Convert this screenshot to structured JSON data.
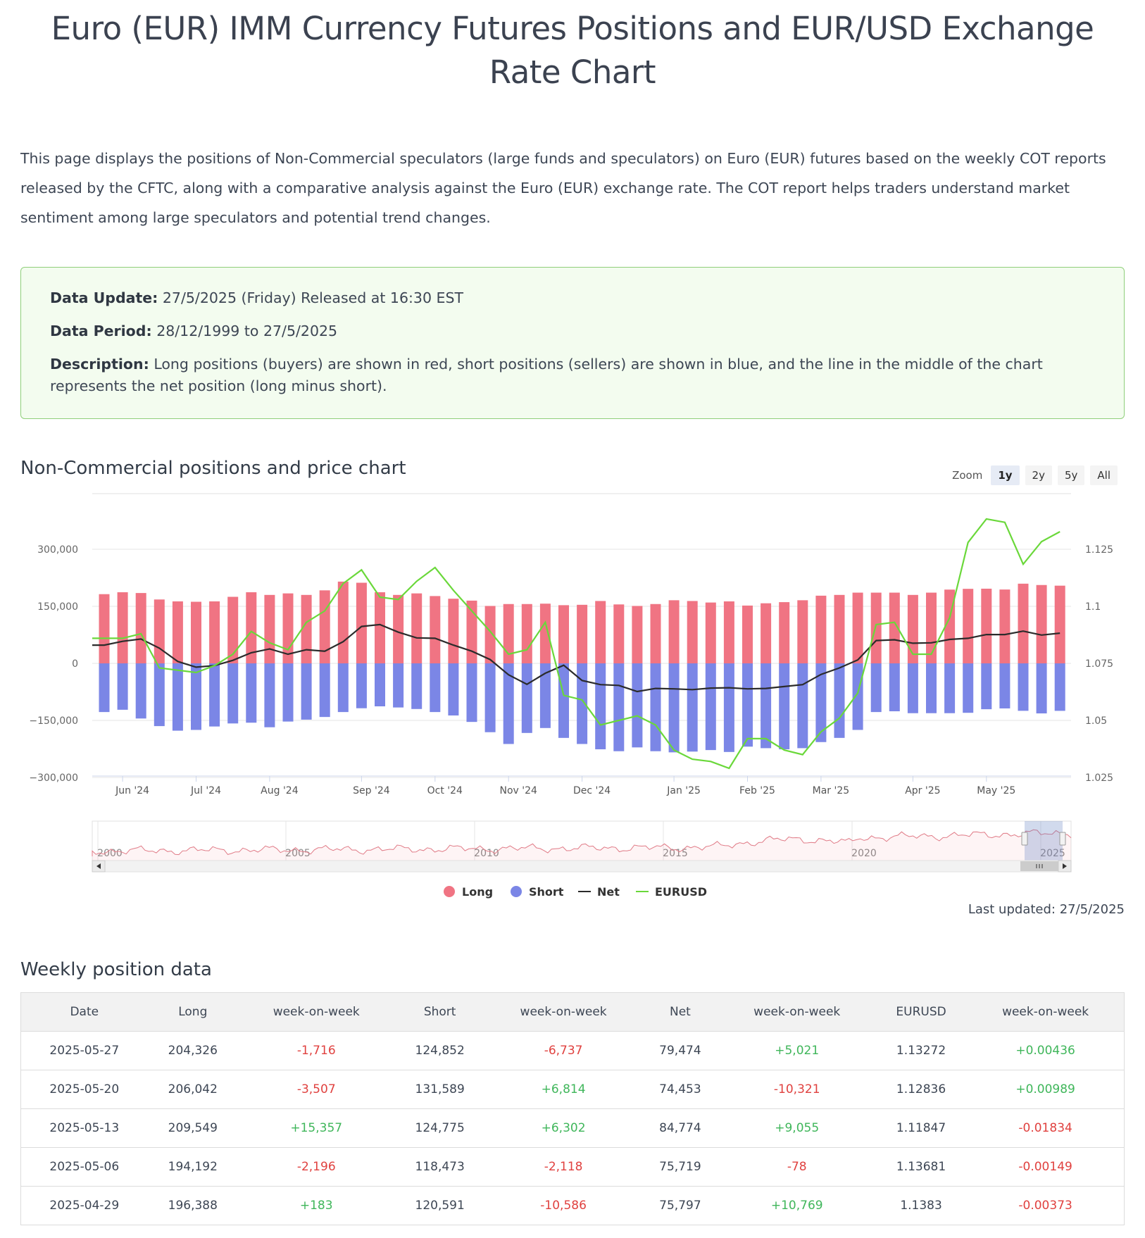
{
  "page": {
    "title": "Euro (EUR) IMM Currency Futures Positions and EUR/USD Exchange Rate Chart",
    "intro": "This page displays the positions of Non-Commercial speculators (large funds and speculators) on Euro (EUR) futures based on the weekly COT reports released by the CFTC, along with a comparative analysis against the Euro (EUR) exchange rate. The COT report helps traders understand market sentiment among large speculators and potential trend changes."
  },
  "info": {
    "update_label": "Data Update:",
    "update_value": "27/5/2025 (Friday) Released at 16:30 EST",
    "period_label": "Data Period:",
    "period_value": "28/12/1999 to 27/5/2025",
    "desc_label": "Description:",
    "desc_value": "Long positions (buyers) are shown in red, short positions (sellers) are shown in blue, and the line in the middle of the chart represents the net position (long minus short)."
  },
  "chart_section": {
    "title": "Non-Commercial positions and price chart",
    "zoom_label": "Zoom",
    "zoom_buttons": [
      "1y",
      "2y",
      "5y",
      "All"
    ],
    "zoom_active": "1y",
    "last_updated": "Last updated: 27/5/2025"
  },
  "colors": {
    "long": "#f07483",
    "short": "#7b86e6",
    "net": "#2b2b2b",
    "eurusd": "#6ad83a"
  },
  "chart_data": {
    "type": "bar",
    "x_labels": [
      "Jun '24",
      "Jul '24",
      "Aug '24",
      "Sep '24",
      "Oct '24",
      "Nov '24",
      "Dec '24",
      "Jan '25",
      "Feb '25",
      "Mar '25",
      "Apr '25",
      "May '25"
    ],
    "x_label_week_index": [
      1,
      5,
      9,
      14,
      18,
      22,
      26,
      31,
      35,
      39,
      44,
      48
    ],
    "left_axis_ticks": [
      "300,000",
      "150,000",
      "0",
      "−150,000",
      "−300,000"
    ],
    "right_axis_ticks": [
      "1.125",
      "1.1",
      "1.075",
      "1.05",
      "1.025"
    ],
    "left_ylim": [
      -300000,
      300000
    ],
    "right_ylim": [
      1.025,
      1.125
    ],
    "legend": [
      "Long",
      "Short",
      "Net",
      "EURUSD"
    ],
    "series": [
      {
        "name": "Long",
        "values": [
          182000,
          187000,
          185000,
          168000,
          163000,
          162000,
          163000,
          175000,
          187000,
          180000,
          184000,
          180000,
          192000,
          215000,
          212000,
          187000,
          180000,
          184000,
          177000,
          170000,
          165000,
          151000,
          156000,
          156000,
          157000,
          153000,
          154000,
          164000,
          155000,
          151000,
          156000,
          166000,
          164000,
          160000,
          163000,
          152000,
          158000,
          161000,
          166000,
          178000,
          180000,
          186000,
          186000,
          186000,
          180000,
          186000,
          194000,
          196000,
          196388,
          194192,
          209549,
          206042,
          204326
        ]
      },
      {
        "name": "Short",
        "values": [
          -128000,
          -122000,
          -145000,
          -165000,
          -177000,
          -175000,
          -166000,
          -158000,
          -156000,
          -168000,
          -153000,
          -148000,
          -141000,
          -128000,
          -118000,
          -113000,
          -116000,
          -120000,
          -128000,
          -137000,
          -154000,
          -181000,
          -212000,
          -183000,
          -170000,
          -196000,
          -212000,
          -226000,
          -231000,
          -221000,
          -231000,
          -234000,
          -232000,
          -228000,
          -233000,
          -219000,
          -223000,
          -226000,
          -223000,
          -207000,
          -196000,
          -175000,
          -128000,
          -126000,
          -131000,
          -131000,
          -131000,
          -130000,
          -120591,
          -118473,
          -124775,
          -131589,
          -124852
        ]
      },
      {
        "name": "Net",
        "values": [
          48000,
          58000,
          64000,
          40000,
          5000,
          -10000,
          -6000,
          8000,
          28000,
          38000,
          24000,
          36000,
          32000,
          57000,
          97000,
          102000,
          82000,
          67000,
          66000,
          48000,
          32000,
          10000,
          -30000,
          -55000,
          -26000,
          -5000,
          -45000,
          -56000,
          -58000,
          -74000,
          -66000,
          -67000,
          -69000,
          -65000,
          -64000,
          -67000,
          -66000,
          -61000,
          -56000,
          -29000,
          -12000,
          9000,
          60000,
          62000,
          53000,
          54000,
          63000,
          66000,
          75797,
          75719,
          84774,
          74453,
          79474
        ]
      },
      {
        "name": "EURUSD",
        "values": [
          1.086,
          1.086,
          1.088,
          1.073,
          1.072,
          1.071,
          1.074,
          1.079,
          1.089,
          1.084,
          1.081,
          1.093,
          1.098,
          1.11,
          1.116,
          1.104,
          1.103,
          1.111,
          1.117,
          1.107,
          1.098,
          1.089,
          1.079,
          1.081,
          1.093,
          1.061,
          1.059,
          1.048,
          1.05,
          1.052,
          1.048,
          1.037,
          1.033,
          1.032,
          1.029,
          1.042,
          1.042,
          1.037,
          1.035,
          1.045,
          1.051,
          1.062,
          1.092,
          1.093,
          1.079,
          1.079,
          1.095,
          1.128,
          1.1383,
          1.13681,
          1.11847,
          1.12836,
          1.13272
        ]
      }
    ],
    "navigator_labels": [
      "2000",
      "2005",
      "2010",
      "2015",
      "2020",
      "2025"
    ]
  },
  "table": {
    "title": "Weekly position data",
    "headers": [
      "Date",
      "Long",
      "week-on-week",
      "Short",
      "week-on-week",
      "Net",
      "week-on-week",
      "EURUSD",
      "week-on-week"
    ],
    "rows": [
      [
        "2025-05-27",
        "204,326",
        "-1,716",
        "124,852",
        "-6,737",
        "79,474",
        "+5,021",
        "1.13272",
        "+0.00436"
      ],
      [
        "2025-05-20",
        "206,042",
        "-3,507",
        "131,589",
        "+6,814",
        "74,453",
        "-10,321",
        "1.12836",
        "+0.00989"
      ],
      [
        "2025-05-13",
        "209,549",
        "+15,357",
        "124,775",
        "+6,302",
        "84,774",
        "+9,055",
        "1.11847",
        "-0.01834"
      ],
      [
        "2025-05-06",
        "194,192",
        "-2,196",
        "118,473",
        "-2,118",
        "75,719",
        "-78",
        "1.13681",
        "-0.00149"
      ],
      [
        "2025-04-29",
        "196,388",
        "+183",
        "120,591",
        "-10,586",
        "75,797",
        "+10,769",
        "1.1383",
        "-0.00373"
      ]
    ]
  }
}
